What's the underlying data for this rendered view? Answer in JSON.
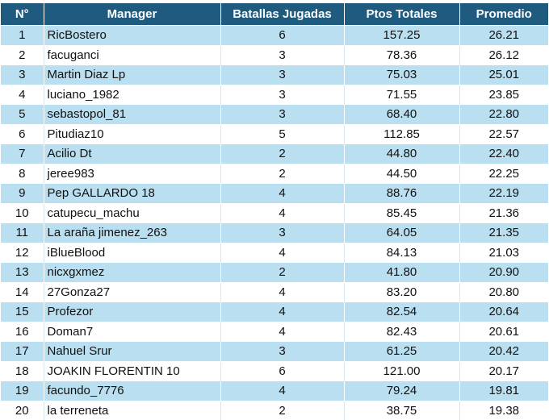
{
  "table": {
    "headers": {
      "num": "N°",
      "manager": "Manager",
      "battles": "Batallas Jugadas",
      "points": "Ptos Totales",
      "average": "Promedio"
    },
    "rows": [
      {
        "num": "1",
        "manager": "RicBostero",
        "battles": "6",
        "points": "157.25",
        "average": "26.21"
      },
      {
        "num": "2",
        "manager": "facuganci",
        "battles": "3",
        "points": "78.36",
        "average": "26.12"
      },
      {
        "num": "3",
        "manager": "Martin Diaz Lp",
        "battles": "3",
        "points": "75.03",
        "average": "25.01"
      },
      {
        "num": "4",
        "manager": "luciano_1982",
        "battles": "3",
        "points": "71.55",
        "average": "23.85"
      },
      {
        "num": "5",
        "manager": "sebastopol_81",
        "battles": "3",
        "points": "68.40",
        "average": "22.80"
      },
      {
        "num": "6",
        "manager": "Pitudiaz10",
        "battles": "5",
        "points": "112.85",
        "average": "22.57"
      },
      {
        "num": "7",
        "manager": "Acilio Dt",
        "battles": "2",
        "points": "44.80",
        "average": "22.40"
      },
      {
        "num": "8",
        "manager": "jeree983",
        "battles": "2",
        "points": "44.50",
        "average": "22.25"
      },
      {
        "num": "9",
        "manager": "Pep GALLARDO 18",
        "battles": "4",
        "points": "88.76",
        "average": "22.19"
      },
      {
        "num": "10",
        "manager": "catupecu_machu",
        "battles": "4",
        "points": "85.45",
        "average": "21.36"
      },
      {
        "num": "11",
        "manager": "La araña jimenez_263",
        "battles": "3",
        "points": "64.05",
        "average": "21.35"
      },
      {
        "num": "12",
        "manager": "iBlueBlood",
        "battles": "4",
        "points": "84.13",
        "average": "21.03"
      },
      {
        "num": "13",
        "manager": "nicxgxmez",
        "battles": "2",
        "points": "41.80",
        "average": "20.90"
      },
      {
        "num": "14",
        "manager": "27Gonza27",
        "battles": "4",
        "points": "83.20",
        "average": "20.80"
      },
      {
        "num": "15",
        "manager": "Profezor",
        "battles": "4",
        "points": "82.54",
        "average": "20.64"
      },
      {
        "num": "16",
        "manager": "Doman7",
        "battles": "4",
        "points": "82.43",
        "average": "20.61"
      },
      {
        "num": "17",
        "manager": "Nahuel Srur",
        "battles": "3",
        "points": "61.25",
        "average": "20.42"
      },
      {
        "num": "18",
        "manager": "JOAKIN FLORENTIN 10",
        "battles": "6",
        "points": "121.00",
        "average": "20.17"
      },
      {
        "num": "19",
        "manager": "facundo_7776",
        "battles": "4",
        "points": "79.24",
        "average": "19.81"
      },
      {
        "num": "20",
        "manager": "la terreneta",
        "battles": "2",
        "points": "38.75",
        "average": "19.38"
      }
    ]
  },
  "colors": {
    "header_bg": "#1f5a7f",
    "header_text": "#ffffff",
    "row_alt_bg": "#b9dff0",
    "row_bg": "#ffffff"
  }
}
